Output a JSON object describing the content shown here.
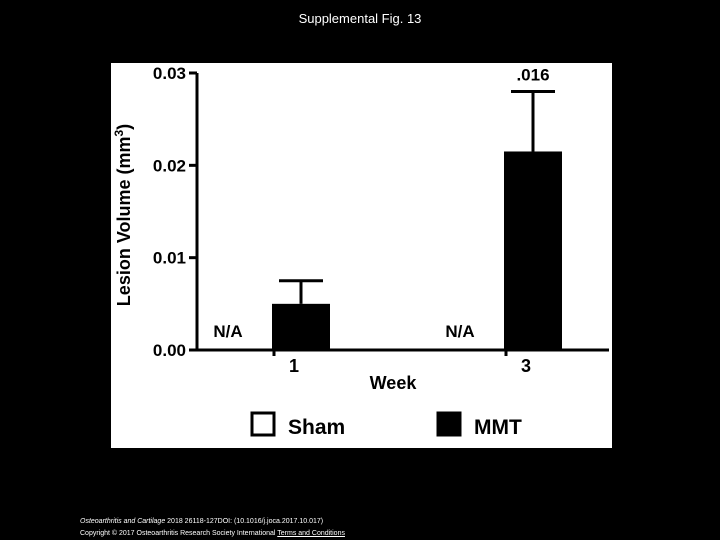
{
  "slide": {
    "title": "Supplemental Fig. 13"
  },
  "citation": {
    "journal": "Osteoarthritis and Cartilage",
    "details": " 2018 26118-127DOI: (10.1016/j.joca.2017.10.017)",
    "copyright": "Copyright © 2017 Osteoarthritis Research Society International",
    "terms_link": "Terms and Conditions"
  },
  "colors": {
    "background": "#000000",
    "panel": "#ffffff",
    "ink": "#000000",
    "sham_fill": "#ffffff",
    "mmt_fill": "#000000"
  },
  "chart_data": {
    "type": "bar",
    "ylabel": "Lesion Volume (mm³)",
    "xlabel": "Week",
    "ylim": [
      0,
      0.03
    ],
    "yticks": [
      "0.00",
      "0.01",
      "0.02",
      "0.03"
    ],
    "categories": [
      "1",
      "3"
    ],
    "series": [
      {
        "name": "Sham",
        "values": [
          null,
          null
        ],
        "labels": [
          "N/A",
          "N/A"
        ]
      },
      {
        "name": "MMT",
        "values": [
          0.005,
          0.0215
        ],
        "errors": [
          0.0025,
          0.0065
        ]
      }
    ],
    "annotations": [
      ".016"
    ],
    "legend": "bottom",
    "grid": false
  }
}
